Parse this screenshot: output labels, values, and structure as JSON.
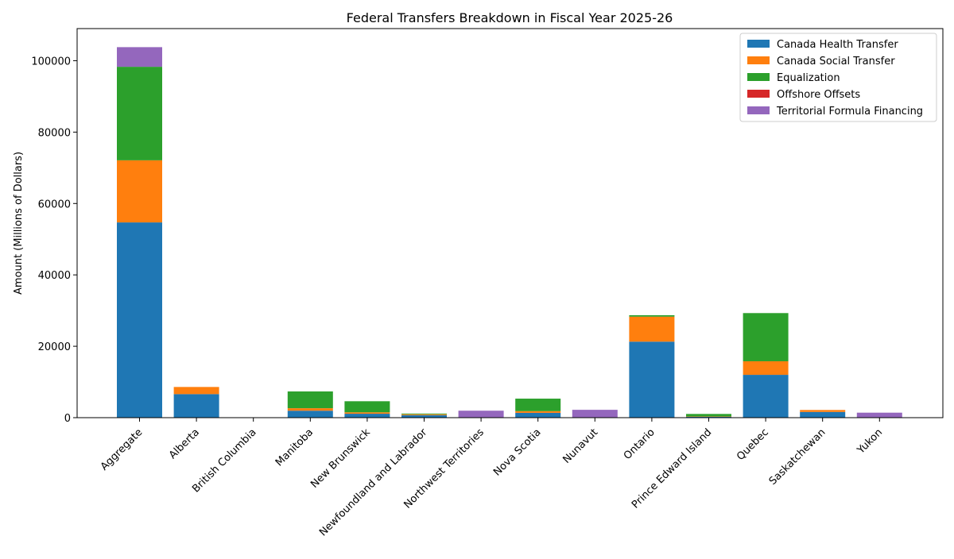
{
  "chart_data": {
    "type": "bar",
    "stacked": true,
    "title": "Federal Transfers Breakdown in Fiscal Year 2025-26",
    "xlabel": "",
    "ylabel": "Amount (Millions of Dollars)",
    "ylim": [
      0,
      109000
    ],
    "yticks": [
      0,
      20000,
      40000,
      60000,
      80000,
      100000
    ],
    "grid": false,
    "legend_position": "top-right",
    "categories": [
      "Aggregate",
      "Alberta",
      "British Columbia",
      "Manitoba",
      "New Brunswick",
      "Newfoundland and Labrador",
      "Northwest Territories",
      "Nova Scotia",
      "Nunavut",
      "Ontario",
      "Prince Edward Island",
      "Quebec",
      "Saskatchewan",
      "Yukon"
    ],
    "series": [
      {
        "name": "Canada Health Transfer",
        "color": "#1f77b4",
        "values": [
          54700,
          6600,
          0,
          1950,
          1100,
          700,
          0,
          1350,
          0,
          21300,
          250,
          12000,
          1600,
          0
        ]
      },
      {
        "name": "Canada Social Transfer",
        "color": "#ff7f0e",
        "values": [
          17400,
          2000,
          0,
          700,
          400,
          250,
          0,
          480,
          0,
          7000,
          90,
          3800,
          550,
          0
        ]
      },
      {
        "name": "Equalization",
        "color": "#2ca02c",
        "values": [
          26200,
          0,
          0,
          4700,
          3100,
          200,
          0,
          3500,
          0,
          400,
          700,
          13500,
          0,
          0
        ]
      },
      {
        "name": "Offshore Offsets",
        "color": "#d62728",
        "values": [
          0,
          0,
          0,
          0,
          0,
          0,
          0,
          0,
          0,
          0,
          0,
          0,
          0,
          0
        ]
      },
      {
        "name": "Territorial Formula Financing",
        "color": "#9467bd",
        "values": [
          5500,
          0,
          0,
          0,
          0,
          0,
          1950,
          0,
          2200,
          0,
          0,
          0,
          0,
          1400
        ]
      }
    ]
  }
}
